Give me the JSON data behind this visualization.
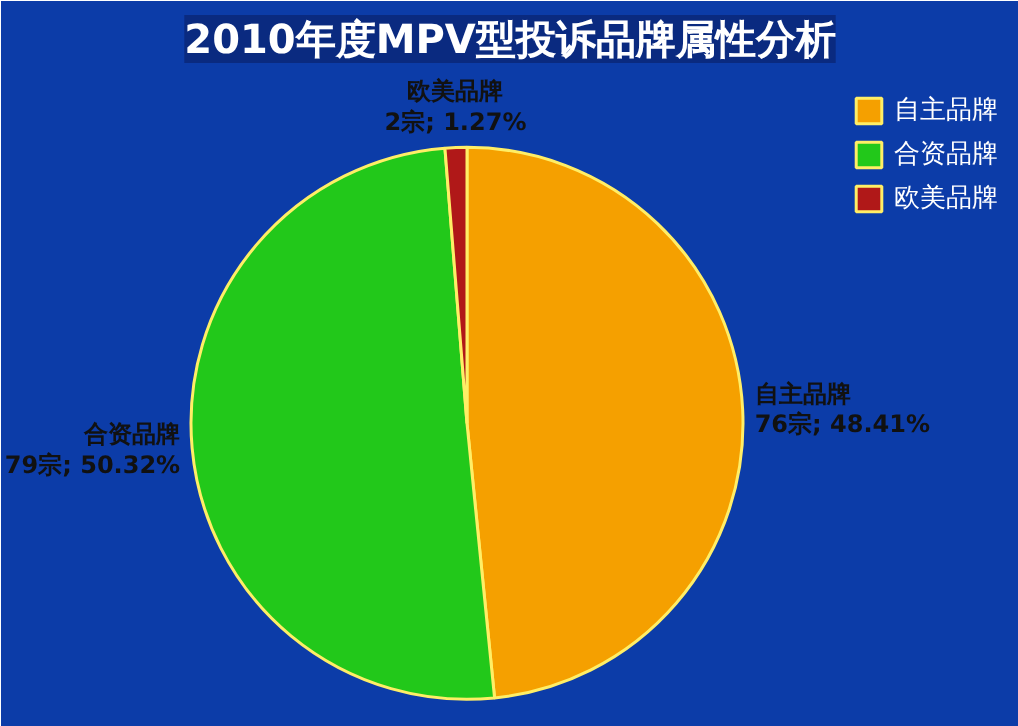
{
  "chart_data": {
    "type": "pie",
    "title": "2010年度MPV型投诉品牌属性分析",
    "categories": [
      "自主品牌",
      "合资品牌",
      "欧美品牌"
    ],
    "values": [
      76,
      79,
      2
    ],
    "colors": [
      "#f5a000",
      "#22c81a",
      "#b01818"
    ],
    "value_labels": [
      "76宗; 48.41%",
      "79宗; 50.32%",
      "2宗; 1.27%"
    ],
    "legend": "top right"
  }
}
